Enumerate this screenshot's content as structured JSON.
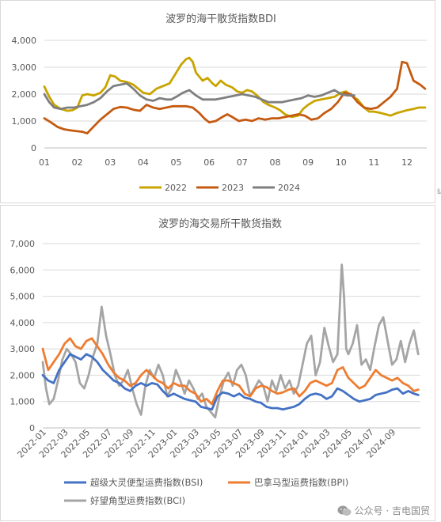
{
  "chart_data": [
    {
      "type": "line",
      "title": "波罗的海干散货指数BDI",
      "xlabel": "",
      "ylabel": "",
      "ylim": [
        0,
        4000
      ],
      "yticks": [
        "0",
        "1,000",
        "2,000",
        "3,000",
        "4,000"
      ],
      "xticks": [
        "01",
        "02",
        "03",
        "04",
        "05",
        "06",
        "07",
        "08",
        "09",
        "10",
        "11",
        "12"
      ],
      "xlim": [
        1,
        12.6
      ],
      "grid": true,
      "legend": "bottom",
      "series": [
        {
          "name": "2022",
          "color": "#C9A400",
          "x": [
            1.0,
            1.15,
            1.3,
            1.5,
            1.7,
            1.85,
            2.0,
            2.15,
            2.3,
            2.5,
            2.7,
            2.85,
            3.0,
            3.15,
            3.3,
            3.5,
            3.7,
            3.85,
            4.0,
            4.2,
            4.4,
            4.6,
            4.8,
            5.0,
            5.15,
            5.3,
            5.4,
            5.5,
            5.6,
            5.8,
            5.95,
            6.1,
            6.2,
            6.35,
            6.5,
            6.7,
            6.85,
            7.0,
            7.15,
            7.3,
            7.5,
            7.65,
            7.8,
            8.0,
            8.15,
            8.3,
            8.5,
            8.7,
            8.85,
            9.0,
            9.2,
            9.4,
            9.6,
            9.8,
            10.0,
            10.15,
            10.3,
            10.5,
            10.7,
            10.85,
            11.0,
            11.2,
            11.35,
            11.5,
            11.7,
            11.85,
            12.0,
            12.2,
            12.35,
            12.55
          ],
          "y": [
            2280,
            1900,
            1600,
            1450,
            1380,
            1400,
            1500,
            1950,
            2000,
            1950,
            2050,
            2250,
            2700,
            2650,
            2500,
            2450,
            2350,
            2200,
            2050,
            2000,
            2200,
            2300,
            2400,
            2800,
            3100,
            3300,
            3350,
            3200,
            2800,
            2500,
            2600,
            2400,
            2300,
            2500,
            2350,
            2250,
            2100,
            2050,
            2150,
            2100,
            1900,
            1700,
            1600,
            1500,
            1400,
            1250,
            1150,
            1200,
            1450,
            1600,
            1750,
            1800,
            1850,
            1900,
            2050,
            2100,
            1950,
            1800,
            1500,
            1350,
            1350,
            1300,
            1250,
            1200,
            1300,
            1350,
            1400,
            1450,
            1500,
            1500
          ]
        },
        {
          "name": "2023",
          "color": "#C55A11",
          "x": [
            1.0,
            1.2,
            1.4,
            1.6,
            1.8,
            2.0,
            2.15,
            2.3,
            2.5,
            2.7,
            2.9,
            3.1,
            3.3,
            3.5,
            3.7,
            3.9,
            4.1,
            4.3,
            4.5,
            4.7,
            4.9,
            5.1,
            5.3,
            5.5,
            5.7,
            5.85,
            6.0,
            6.2,
            6.4,
            6.55,
            6.7,
            6.9,
            7.1,
            7.3,
            7.5,
            7.7,
            7.9,
            8.1,
            8.3,
            8.5,
            8.7,
            8.9,
            9.1,
            9.3,
            9.5,
            9.7,
            9.9,
            10.1,
            10.3,
            10.5,
            10.7,
            10.9,
            11.1,
            11.3,
            11.5,
            11.7,
            11.85,
            12.0,
            12.2,
            12.4,
            12.55
          ],
          "y": [
            1100,
            950,
            780,
            690,
            650,
            620,
            600,
            540,
            800,
            1050,
            1250,
            1450,
            1520,
            1500,
            1420,
            1380,
            1600,
            1500,
            1450,
            1500,
            1550,
            1550,
            1550,
            1500,
            1300,
            1100,
            950,
            1000,
            1150,
            1250,
            1150,
            1000,
            1050,
            1000,
            1100,
            1050,
            1100,
            1100,
            1150,
            1200,
            1250,
            1200,
            1050,
            1100,
            1300,
            1450,
            1700,
            2050,
            2000,
            1700,
            1500,
            1450,
            1500,
            1700,
            1900,
            2200,
            3200,
            3150,
            2500,
            2350,
            2200
          ]
        },
        {
          "name": "2024",
          "color": "#7F7F7F",
          "x": [
            1.0,
            1.15,
            1.3,
            1.5,
            1.7,
            1.9,
            2.1,
            2.3,
            2.5,
            2.7,
            2.9,
            3.1,
            3.3,
            3.5,
            3.7,
            3.9,
            4.1,
            4.3,
            4.5,
            4.7,
            4.85,
            5.0,
            5.2,
            5.4,
            5.6,
            5.8,
            6.0,
            6.2,
            6.4,
            6.6,
            6.8,
            7.0,
            7.2,
            7.4,
            7.6,
            7.8,
            8.0,
            8.2,
            8.4,
            8.6,
            8.8,
            9.0,
            9.2,
            9.4,
            9.6,
            9.8,
            10.0,
            10.2,
            10.4
          ],
          "y": [
            2000,
            1700,
            1500,
            1450,
            1500,
            1500,
            1550,
            1600,
            1700,
            1850,
            2100,
            2300,
            2350,
            2400,
            2200,
            1950,
            1800,
            1750,
            1850,
            1800,
            1800,
            1900,
            2050,
            2150,
            1950,
            1800,
            1800,
            1800,
            1850,
            1900,
            1950,
            2000,
            1950,
            1900,
            1800,
            1700,
            1700,
            1700,
            1750,
            1800,
            1850,
            1950,
            1900,
            1950,
            2050,
            2150,
            2000,
            1950,
            1950
          ]
        }
      ]
    },
    {
      "type": "line",
      "title": "波罗的海交易所干散货指数",
      "xlabel": "",
      "ylabel": "",
      "ylim": [
        0,
        7000
      ],
      "yticks": [
        "0",
        "1,000",
        "2,000",
        "3,000",
        "4,000",
        "5,000",
        "6,000",
        "7,000"
      ],
      "xticks": [
        "2022-01",
        "2022-03",
        "2022-05",
        "2022-07",
        "2022-09",
        "2022-11",
        "2023-01",
        "2023-03",
        "2023-05",
        "2023-07",
        "2023-09",
        "2023-11",
        "2024-01",
        "2024-03",
        "2024-05",
        "2024-07",
        "2024-09"
      ],
      "xlim": [
        0,
        34.6
      ],
      "grid": true,
      "legend": "bottom",
      "series": [
        {
          "name": "超级大灵便型运费指数(BSI)",
          "color": "#4472C4",
          "x": [
            0,
            0.5,
            1,
            1.5,
            2,
            2.5,
            3,
            3.5,
            4,
            4.5,
            5,
            5.5,
            6,
            6.5,
            7,
            7.5,
            8,
            8.5,
            9,
            9.5,
            10,
            10.5,
            11,
            11.5,
            12,
            12.5,
            13,
            13.5,
            14,
            14.5,
            15,
            15.5,
            16,
            16.5,
            17,
            17.5,
            18,
            18.5,
            19,
            19.5,
            20,
            20.5,
            21,
            21.5,
            22,
            22.5,
            23,
            23.5,
            24,
            24.5,
            25,
            25.5,
            26,
            26.5,
            27,
            27.5,
            28,
            28.5,
            29,
            29.5,
            30,
            30.5,
            31,
            31.5,
            32,
            32.5,
            33,
            33.5,
            34,
            34.4
          ],
          "y": [
            2000,
            1800,
            1700,
            2200,
            2500,
            2800,
            2700,
            2600,
            2800,
            2700,
            2500,
            2200,
            2000,
            1800,
            1700,
            1500,
            1400,
            1600,
            1700,
            1600,
            1700,
            1650,
            1400,
            1200,
            1300,
            1200,
            1100,
            1050,
            1000,
            800,
            750,
            700,
            1200,
            1350,
            1300,
            1200,
            1300,
            1150,
            1100,
            1000,
            950,
            800,
            750,
            750,
            700,
            750,
            800,
            900,
            1100,
            1250,
            1300,
            1250,
            1100,
            1200,
            1500,
            1400,
            1250,
            1100,
            1000,
            1050,
            1100,
            1250,
            1300,
            1350,
            1450,
            1500,
            1300,
            1400,
            1300,
            1250
          ]
        },
        {
          "name": "巴拿马型运费指数(BPI)",
          "color": "#ED7D31",
          "x": [
            0,
            0.5,
            1,
            1.5,
            2,
            2.5,
            3,
            3.5,
            4,
            4.5,
            5,
            5.5,
            6,
            6.5,
            7,
            7.5,
            8,
            8.5,
            9,
            9.5,
            10,
            10.5,
            11,
            11.5,
            12,
            12.5,
            13,
            13.5,
            14,
            14.5,
            15,
            15.5,
            16,
            16.5,
            17,
            17.5,
            18,
            18.5,
            19,
            19.5,
            20,
            20.5,
            21,
            21.5,
            22,
            22.5,
            23,
            23.5,
            24,
            24.5,
            25,
            25.5,
            26,
            26.5,
            27,
            27.5,
            28,
            28.5,
            29,
            29.5,
            30,
            30.5,
            31,
            31.5,
            32,
            32.5,
            33,
            33.5,
            34,
            34.4
          ],
          "y": [
            3000,
            2200,
            2500,
            2800,
            3200,
            3400,
            3100,
            3000,
            3300,
            3400,
            3100,
            2800,
            2400,
            2100,
            1900,
            1800,
            1600,
            1700,
            2000,
            2200,
            2000,
            1800,
            1700,
            1500,
            1700,
            1600,
            1600,
            1400,
            1300,
            1000,
            1100,
            900,
            1400,
            1800,
            1800,
            1700,
            1600,
            1300,
            1200,
            1500,
            1600,
            1550,
            1400,
            1300,
            1350,
            1450,
            1500,
            1200,
            1400,
            1700,
            1800,
            1700,
            1600,
            1700,
            2200,
            2300,
            1900,
            1700,
            1500,
            1600,
            1900,
            2200,
            2000,
            1900,
            1800,
            1900,
            1700,
            1600,
            1400,
            1450
          ]
        },
        {
          "name": "好望角型运费指数(BCI)",
          "color": "#A5A5A5",
          "x": [
            0,
            0.3,
            0.6,
            1,
            1.4,
            1.8,
            2.2,
            2.6,
            3,
            3.4,
            3.8,
            4.2,
            4.6,
            5,
            5.4,
            5.8,
            6.2,
            6.6,
            7,
            7.4,
            7.8,
            8.2,
            8.6,
            9,
            9.4,
            9.8,
            10.2,
            10.6,
            11,
            11.4,
            11.8,
            12.2,
            12.6,
            13,
            13.4,
            13.8,
            14.2,
            14.6,
            15,
            15.4,
            15.8,
            16.2,
            16.6,
            17,
            17.4,
            17.8,
            18.2,
            18.6,
            19,
            19.4,
            19.8,
            20.2,
            20.6,
            21,
            21.4,
            21.8,
            22.2,
            22.6,
            23,
            23.4,
            23.8,
            24.2,
            24.6,
            25,
            25.4,
            25.8,
            26.2,
            26.6,
            27,
            27.2,
            27.4,
            27.6,
            27.8,
            28,
            28.4,
            28.8,
            29.2,
            29.6,
            30,
            30.4,
            30.8,
            31.2,
            31.6,
            32,
            32.4,
            32.8,
            33.2,
            33.6,
            34,
            34.4
          ],
          "y": [
            2500,
            1500,
            900,
            1100,
            1800,
            2600,
            3000,
            2800,
            2500,
            1700,
            1500,
            2000,
            2700,
            3200,
            4600,
            3500,
            2800,
            2000,
            1600,
            1800,
            2200,
            1500,
            900,
            500,
            1600,
            2200,
            1900,
            2400,
            2000,
            1200,
            1500,
            2200,
            1800,
            1300,
            1800,
            1500,
            1100,
            1300,
            800,
            600,
            400,
            1200,
            1800,
            2100,
            1600,
            2200,
            2400,
            2000,
            1200,
            1500,
            1800,
            1600,
            1000,
            1800,
            1400,
            2000,
            1500,
            1800,
            1300,
            1600,
            2400,
            3200,
            3500,
            2000,
            2500,
            3800,
            3100,
            2500,
            2800,
            4500,
            6200,
            5000,
            3000,
            2800,
            3200,
            3900,
            2400,
            2600,
            2200,
            3100,
            3900,
            4200,
            3300,
            2400,
            2600,
            3300,
            2500,
            3200,
            3700,
            2800
          ]
        }
      ]
    }
  ],
  "watermark": {
    "text": "公众号 · 吉电国贸",
    "icon": "wechat-icon"
  },
  "side_mark": "╚"
}
